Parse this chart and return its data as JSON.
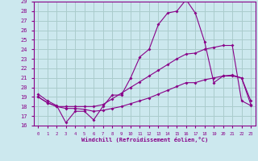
{
  "xlabel": "Windchill (Refroidissement éolien,°C)",
  "background_color": "#cce8ee",
  "grid_color": "#aacccc",
  "line_color": "#880088",
  "xlim": [
    -0.5,
    23.5
  ],
  "ylim": [
    16,
    29
  ],
  "yticks": [
    16,
    17,
    18,
    19,
    20,
    21,
    22,
    23,
    24,
    25,
    26,
    27,
    28,
    29
  ],
  "xticks": [
    0,
    1,
    2,
    3,
    4,
    5,
    6,
    7,
    8,
    9,
    10,
    11,
    12,
    13,
    14,
    15,
    16,
    17,
    18,
    19,
    20,
    21,
    22,
    23
  ],
  "line1_x": [
    0,
    1,
    2,
    3,
    4,
    5,
    6,
    7,
    8,
    9,
    10,
    11,
    12,
    13,
    14,
    15,
    16,
    17,
    18,
    19,
    20,
    21,
    22,
    23
  ],
  "line1_y": [
    19.3,
    18.6,
    18.1,
    16.3,
    17.5,
    17.5,
    16.6,
    18.0,
    19.2,
    19.2,
    21.0,
    23.2,
    24.0,
    26.6,
    27.8,
    28.0,
    29.2,
    27.8,
    24.8,
    20.5,
    21.2,
    21.3,
    21.0,
    18.6
  ],
  "line2_x": [
    0,
    1,
    2,
    3,
    4,
    5,
    6,
    7,
    8,
    9,
    10,
    11,
    12,
    13,
    14,
    15,
    16,
    17,
    18,
    19,
    20,
    21,
    22,
    23
  ],
  "line2_y": [
    19.0,
    18.4,
    18.0,
    17.8,
    17.8,
    17.7,
    17.5,
    17.6,
    17.8,
    18.0,
    18.3,
    18.6,
    18.9,
    19.3,
    19.7,
    20.1,
    20.5,
    20.5,
    20.8,
    21.0,
    21.2,
    21.2,
    21.0,
    18.2
  ],
  "line3_x": [
    0,
    1,
    2,
    3,
    4,
    5,
    6,
    7,
    8,
    9,
    10,
    11,
    12,
    13,
    14,
    15,
    16,
    17,
    18,
    19,
    20,
    21,
    22,
    23
  ],
  "line3_y": [
    19.0,
    18.4,
    18.0,
    18.0,
    18.0,
    18.0,
    18.0,
    18.2,
    18.8,
    19.4,
    20.0,
    20.6,
    21.2,
    21.8,
    22.4,
    23.0,
    23.5,
    23.6,
    24.0,
    24.2,
    24.4,
    24.4,
    18.6,
    18.1
  ]
}
